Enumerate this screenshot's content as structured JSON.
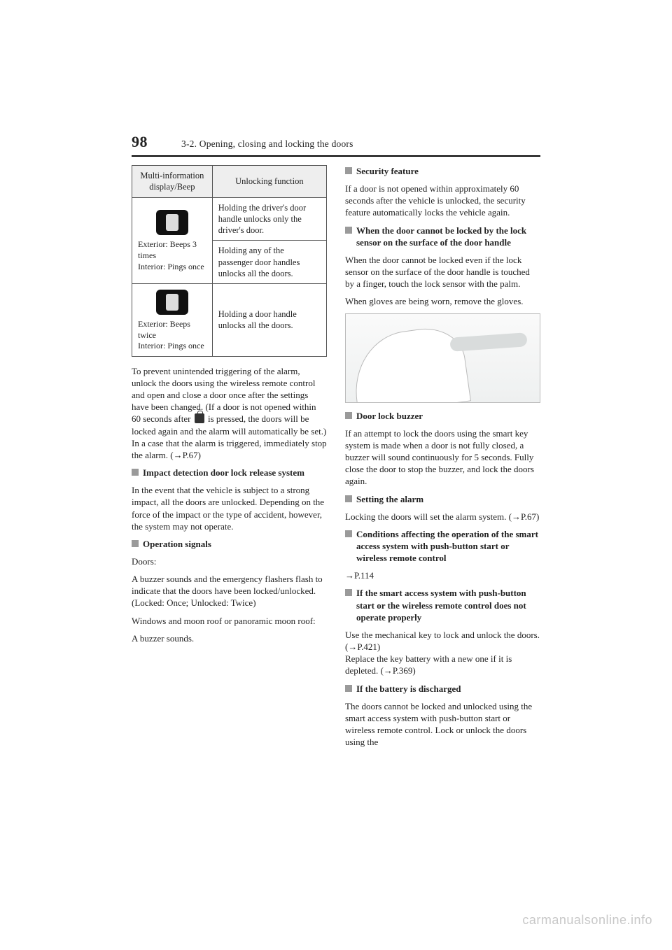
{
  "page_number": "98",
  "section_title": "3-2. Opening, closing and locking the doors",
  "table": {
    "headers": [
      "Multi-information display/Beep",
      "Unlocking function"
    ],
    "rows": [
      {
        "icon": true,
        "caption1": "Exterior: Beeps 3 times",
        "caption2": "Interior: Pings once",
        "cells": [
          "Holding the driver's door handle unlocks only the driver's door.",
          "Holding any of the passenger door handles unlocks all the doors."
        ]
      },
      {
        "icon": true,
        "caption1": "Exterior: Beeps twice",
        "caption2": "Interior: Pings once",
        "cells": [
          "Holding a door handle unlocks all the doors."
        ]
      }
    ]
  },
  "left": {
    "p1a": "To prevent unintended triggering of the alarm, unlock the doors using the wireless remote control and open and close a door once after the settings have been changed. (If a door is not opened within 60 seconds after ",
    "p1b": " is pressed, the doors will be locked again and the alarm will automatically be set.)\nIn a case that the alarm is triggered, immediately stop the alarm. (",
    "p1c": "P.67)",
    "h_impact": "Impact detection door lock release system",
    "p_impact": "In the event that the vehicle is subject to a strong impact, all the doors are unlocked. Depending on the force of the impact or the type of accident, however, the system may not operate.",
    "h_signals": "Operation signals",
    "p_sig1": "Doors:",
    "p_sig2": "A buzzer sounds and the emergency flashers flash to indicate that the doors have been locked/unlocked. (Locked: Once; Unlocked: Twice)",
    "p_sig3": "Windows and moon roof or panoramic moon roof:",
    "p_sig4": "A buzzer sounds."
  },
  "right": {
    "h_sec": "Security feature",
    "p_sec": "If a door is not opened within approximately 60 seconds after the vehicle is unlocked, the security feature automatically locks the vehicle again.",
    "h_lock": "When the door cannot be locked by the lock sensor on the surface of the door handle",
    "p_lock1": "When the door cannot be locked even if the lock sensor on the surface of the door handle is touched by a finger, touch the lock sensor with the palm.",
    "p_lock2": "When gloves are being worn, remove the gloves.",
    "h_buzz": "Door lock buzzer",
    "p_buzz": "If an attempt to lock the doors using the smart key system is made when a door is not fully closed, a buzzer will sound continuously for 5 seconds. Fully close the door to stop the buzzer, and lock the doors again.",
    "h_alarm": "Setting the alarm",
    "p_alarm_a": "Locking the doors will set the alarm system. (",
    "p_alarm_b": "P.67)",
    "h_cond": "Conditions affecting the operation of the smart access system with push-button start or wireless remote control",
    "p_cond": "P.114",
    "h_smart": "If the smart access system with push-button start or the wireless remote control does not operate properly",
    "p_smart_a": "Use the mechanical key to lock and unlock the doors. (",
    "p_smart_b": "P.421)",
    "p_smart_c": "Replace the key battery with a new one if it is depleted. (",
    "p_smart_d": "P.369)",
    "h_batt": "If the battery is discharged",
    "p_batt": "The doors cannot be locked and unlocked using the smart access system with push-button start or wireless remote control. Lock or unlock the doors using the"
  },
  "watermark": "carmanualsonline.info"
}
